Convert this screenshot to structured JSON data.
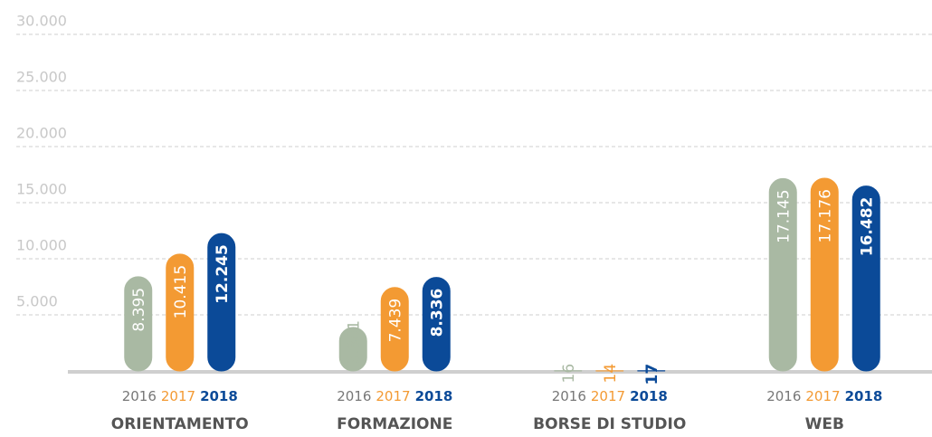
{
  "chart_data": {
    "type": "bar",
    "categories": [
      "ORIENTAMENTO",
      "FORMAZIONE",
      "BORSE DI STUDIO",
      "WEB"
    ],
    "series": [
      {
        "name": "2016",
        "color": "#a9b9a3",
        "values": [
          8395,
          3881,
          16,
          17145
        ],
        "value_labels": [
          "8.395",
          "3.881",
          "16",
          "17.145"
        ]
      },
      {
        "name": "2017",
        "color": "#f39a33",
        "values": [
          10415,
          7439,
          14,
          17176
        ],
        "value_labels": [
          "10.415",
          "7.439",
          "14",
          "17.176"
        ]
      },
      {
        "name": "2018",
        "color": "#0b4a98",
        "values": [
          12245,
          8336,
          17,
          16482
        ],
        "value_labels": [
          "12.245",
          "8.336",
          "17",
          "16.482"
        ]
      }
    ],
    "ylim": [
      0,
      30000
    ],
    "yticks": [
      {
        "value": 5000,
        "label": "5.000"
      },
      {
        "value": 10000,
        "label": "10.000"
      },
      {
        "value": 15000,
        "label": "15.000"
      },
      {
        "value": 20000,
        "label": "20.000"
      },
      {
        "value": 25000,
        "label": "25.000"
      },
      {
        "value": 30000,
        "label": "30.000"
      }
    ],
    "grid": true
  }
}
